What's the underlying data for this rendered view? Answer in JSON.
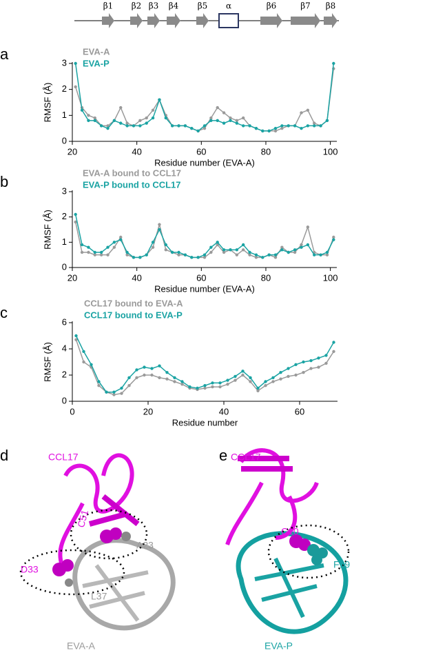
{
  "topology": [
    "β1",
    "β2",
    "β3",
    "β4",
    "β5",
    "α",
    "β6",
    "β7",
    "β8"
  ],
  "panels": [
    "a",
    "b",
    "c",
    "d",
    "e"
  ],
  "chart_data": [
    {
      "type": "line",
      "xlabel": "Residue number (EVA-A)",
      "ylabel": "RMSF (Å)",
      "xlim": [
        20,
        102
      ],
      "xticks": [
        20,
        40,
        60,
        80,
        100
      ],
      "ylim": [
        0,
        3
      ],
      "yticks": [
        0,
        1,
        2,
        3
      ],
      "x": [
        21,
        23,
        25,
        27,
        29,
        31,
        33,
        35,
        37,
        39,
        41,
        43,
        45,
        47,
        49,
        51,
        53,
        55,
        57,
        59,
        61,
        63,
        65,
        67,
        69,
        71,
        73,
        75,
        77,
        79,
        81,
        83,
        85,
        87,
        89,
        91,
        93,
        95,
        97,
        99,
        101
      ],
      "series": [
        {
          "name": "EVA-A",
          "color": "#9a9a9a",
          "values": [
            2.1,
            1.3,
            1.0,
            0.9,
            0.6,
            0.6,
            0.8,
            1.3,
            0.7,
            0.6,
            0.8,
            0.9,
            1.2,
            1.6,
            1.0,
            0.6,
            0.6,
            0.6,
            0.5,
            0.4,
            0.5,
            0.9,
            1.3,
            1.1,
            0.9,
            0.8,
            0.9,
            0.6,
            0.5,
            0.4,
            0.4,
            0.4,
            0.5,
            0.6,
            0.6,
            1.1,
            1.2,
            0.7,
            0.6,
            0.8,
            2.8
          ]
        },
        {
          "name": "EVA-P",
          "color": "#1aa3a3",
          "values": [
            3.0,
            1.2,
            0.8,
            0.8,
            0.6,
            0.5,
            0.8,
            0.7,
            0.6,
            0.6,
            0.6,
            0.7,
            0.9,
            1.6,
            0.9,
            0.6,
            0.6,
            0.6,
            0.5,
            0.4,
            0.6,
            0.8,
            0.8,
            0.7,
            0.8,
            0.7,
            0.6,
            0.6,
            0.5,
            0.4,
            0.4,
            0.5,
            0.6,
            0.6,
            0.6,
            0.5,
            0.6,
            0.6,
            0.6,
            0.8,
            3.0
          ]
        }
      ]
    },
    {
      "type": "line",
      "xlabel": "Residue number (EVA-A)",
      "ylabel": "RMSF (Å)",
      "xlim": [
        20,
        102
      ],
      "xticks": [
        20,
        40,
        60,
        80,
        100
      ],
      "ylim": [
        0,
        3
      ],
      "yticks": [
        0,
        1,
        2,
        3
      ],
      "x": [
        21,
        23,
        25,
        27,
        29,
        31,
        33,
        35,
        37,
        39,
        41,
        43,
        45,
        47,
        49,
        51,
        53,
        55,
        57,
        59,
        61,
        63,
        65,
        67,
        69,
        71,
        73,
        75,
        77,
        79,
        81,
        83,
        85,
        87,
        89,
        91,
        93,
        95,
        97,
        99,
        101
      ],
      "series": [
        {
          "name": "EVA-A bound to CCL17",
          "color": "#9a9a9a",
          "values": [
            1.8,
            0.6,
            0.6,
            0.5,
            0.5,
            0.5,
            0.8,
            1.2,
            0.5,
            0.4,
            0.4,
            0.5,
            0.8,
            1.7,
            0.7,
            0.6,
            0.5,
            0.5,
            0.4,
            0.4,
            0.4,
            0.6,
            0.9,
            0.6,
            0.7,
            0.5,
            0.7,
            0.5,
            0.4,
            0.4,
            0.5,
            0.4,
            0.8,
            0.6,
            0.6,
            0.9,
            1.6,
            0.6,
            0.5,
            0.5,
            1.2
          ]
        },
        {
          "name": "EVA-P bound to CCL17",
          "color": "#1aa3a3",
          "values": [
            2.1,
            0.9,
            0.8,
            0.6,
            0.6,
            0.8,
            1.0,
            1.1,
            0.6,
            0.4,
            0.4,
            0.5,
            1.0,
            1.5,
            0.9,
            0.6,
            0.6,
            0.5,
            0.4,
            0.4,
            0.5,
            0.8,
            1.0,
            0.7,
            0.7,
            0.7,
            0.9,
            0.6,
            0.5,
            0.4,
            0.5,
            0.5,
            0.7,
            0.6,
            0.7,
            0.8,
            0.9,
            0.5,
            0.5,
            0.6,
            1.1
          ]
        }
      ]
    },
    {
      "type": "line",
      "xlabel": "Residue number",
      "ylabel": "RMSF (Å)",
      "xlim": [
        0,
        70
      ],
      "xticks": [
        0,
        20,
        40,
        60
      ],
      "ylim": [
        0,
        6
      ],
      "yticks": [
        0,
        2,
        4,
        6
      ],
      "x": [
        1,
        3,
        5,
        7,
        9,
        11,
        13,
        15,
        17,
        19,
        21,
        23,
        25,
        27,
        29,
        31,
        33,
        35,
        37,
        39,
        41,
        43,
        45,
        47,
        49,
        51,
        53,
        55,
        57,
        59,
        61,
        63,
        65,
        67,
        69
      ],
      "series": [
        {
          "name": "CCL17 bound to EVA-A",
          "color": "#9a9a9a",
          "values": [
            4.7,
            3.0,
            2.6,
            1.2,
            0.7,
            0.5,
            0.6,
            1.2,
            1.8,
            2.0,
            2.0,
            1.8,
            1.7,
            1.5,
            1.3,
            1.0,
            0.9,
            1.0,
            1.1,
            1.1,
            1.3,
            1.6,
            2.0,
            1.5,
            0.8,
            1.2,
            1.5,
            1.7,
            1.9,
            2.0,
            2.2,
            2.5,
            2.6,
            2.9,
            3.8
          ]
        },
        {
          "name": "CCL17 bound to EVA-P",
          "color": "#1aa3a3",
          "values": [
            5.0,
            3.8,
            2.8,
            1.5,
            0.7,
            0.7,
            1.0,
            1.8,
            2.4,
            2.6,
            2.5,
            2.7,
            2.2,
            1.8,
            1.5,
            1.1,
            1.0,
            1.2,
            1.4,
            1.4,
            1.6,
            1.9,
            2.3,
            1.8,
            1.0,
            1.5,
            1.8,
            2.2,
            2.5,
            2.8,
            3.0,
            3.1,
            3.3,
            3.5,
            4.5
          ]
        }
      ]
    }
  ],
  "structures": [
    {
      "labels": [
        "CCL17",
        "D33",
        "C51",
        "A23",
        "L37",
        "EVA-A"
      ]
    },
    {
      "labels": [
        "CCL17",
        "C10",
        "F19",
        "EVA-P"
      ]
    }
  ]
}
